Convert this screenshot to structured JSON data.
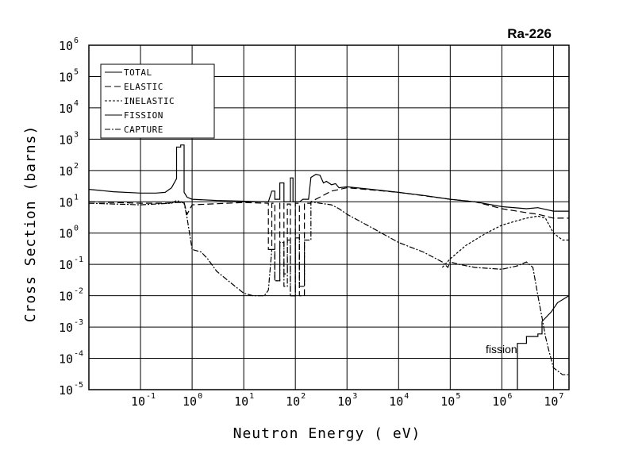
{
  "chart_data": {
    "type": "line",
    "title": "Ra-226",
    "xlabel": "Neutron Energy ( eV)",
    "ylabel": "Cross Section (barns)",
    "xscale": "log",
    "yscale": "log",
    "xlim": [
      0.01,
      20000000
    ],
    "ylim": [
      1e-05,
      1000000
    ],
    "grid": true,
    "legend_position": "top-left",
    "x_ticks": [
      {
        "base": "10",
        "exp": "-1",
        "value": 0.1
      },
      {
        "base": "10",
        "exp": "0",
        "value": 1
      },
      {
        "base": "10",
        "exp": "1",
        "value": 10
      },
      {
        "base": "10",
        "exp": "2",
        "value": 100
      },
      {
        "base": "10",
        "exp": "3",
        "value": 1000
      },
      {
        "base": "10",
        "exp": "4",
        "value": 10000
      },
      {
        "base": "10",
        "exp": "5",
        "value": 100000
      },
      {
        "base": "10",
        "exp": "6",
        "value": 1000000
      },
      {
        "base": "10",
        "exp": "7",
        "value": 10000000
      }
    ],
    "y_ticks": [
      {
        "base": "10",
        "exp": "6",
        "value": 1000000
      },
      {
        "base": "10",
        "exp": "5",
        "value": 100000
      },
      {
        "base": "10",
        "exp": "4",
        "value": 10000
      },
      {
        "base": "10",
        "exp": "3",
        "value": 1000
      },
      {
        "base": "10",
        "exp": "2",
        "value": 100
      },
      {
        "base": "10",
        "exp": "1",
        "value": 10
      },
      {
        "base": "10",
        "exp": "0",
        "value": 1
      },
      {
        "base": "10",
        "exp": "-1",
        "value": 0.1
      },
      {
        "base": "10",
        "exp": "-2",
        "value": 0.01
      },
      {
        "base": "10",
        "exp": "-3",
        "value": 0.001
      },
      {
        "base": "10",
        "exp": "-4",
        "value": 0.0001
      },
      {
        "base": "10",
        "exp": "-5",
        "value": 1e-05
      }
    ],
    "annotations": [
      {
        "text": "fission",
        "x": 300000,
        "y": 0.00012
      }
    ],
    "series": [
      {
        "name": "TOTAL",
        "style": "solid",
        "points": [
          [
            0.01,
            25
          ],
          [
            0.03,
            21
          ],
          [
            0.1,
            19
          ],
          [
            0.2,
            19
          ],
          [
            0.3,
            20
          ],
          [
            0.4,
            28
          ],
          [
            0.5,
            55
          ],
          [
            0.5,
            560
          ],
          [
            0.6,
            560
          ],
          [
            0.6,
            650
          ],
          [
            0.7,
            650
          ],
          [
            0.7,
            20
          ],
          [
            0.8,
            14
          ],
          [
            1,
            12
          ],
          [
            3,
            11
          ],
          [
            30,
            10
          ],
          [
            35,
            22
          ],
          [
            40,
            22
          ],
          [
            40,
            12
          ],
          [
            50,
            12
          ],
          [
            50,
            40
          ],
          [
            60,
            40
          ],
          [
            60,
            10
          ],
          [
            80,
            10
          ],
          [
            80,
            58
          ],
          [
            90,
            58
          ],
          [
            90,
            10
          ],
          [
            120,
            10
          ],
          [
            140,
            12
          ],
          [
            180,
            12
          ],
          [
            200,
            60
          ],
          [
            250,
            75
          ],
          [
            300,
            70
          ],
          [
            350,
            40
          ],
          [
            400,
            45
          ],
          [
            500,
            35
          ],
          [
            600,
            38
          ],
          [
            700,
            28
          ],
          [
            1000,
            30
          ],
          [
            3000,
            25
          ],
          [
            10000,
            20
          ],
          [
            30000,
            16
          ],
          [
            100000,
            12
          ],
          [
            300000,
            10
          ],
          [
            1000000,
            7
          ],
          [
            3000000,
            6
          ],
          [
            5000000,
            6.5
          ],
          [
            10000000,
            5
          ],
          [
            20000000,
            5
          ]
        ]
      },
      {
        "name": "ELASTIC",
        "style": "long-dash",
        "points": [
          [
            0.01,
            10
          ],
          [
            0.1,
            9
          ],
          [
            0.3,
            9
          ],
          [
            0.5,
            9.5
          ],
          [
            0.7,
            9.5
          ],
          [
            0.8,
            4
          ],
          [
            1,
            8
          ],
          [
            10,
            9.5
          ],
          [
            30,
            9
          ],
          [
            30,
            0.3
          ],
          [
            35,
            0.3
          ],
          [
            35,
            9
          ],
          [
            40,
            9
          ],
          [
            40,
            0.03
          ],
          [
            50,
            0.03
          ],
          [
            50,
            9
          ],
          [
            60,
            9
          ],
          [
            60,
            0.05
          ],
          [
            70,
            0.05
          ],
          [
            70,
            8.5
          ],
          [
            80,
            8.5
          ],
          [
            80,
            0.01
          ],
          [
            100,
            0.01
          ],
          [
            100,
            9
          ],
          [
            120,
            9
          ],
          [
            120,
            0.01
          ],
          [
            150,
            0.01
          ],
          [
            150,
            9
          ],
          [
            200,
            9
          ],
          [
            200,
            10
          ],
          [
            500,
            22
          ],
          [
            1000,
            28
          ],
          [
            10000,
            20
          ],
          [
            100000,
            12
          ],
          [
            300000,
            10
          ],
          [
            1000000,
            6
          ],
          [
            3000000,
            4.5
          ],
          [
            5000000,
            4
          ],
          [
            7000000,
            3.5
          ],
          [
            10000000,
            3
          ],
          [
            20000000,
            3
          ]
        ]
      },
      {
        "name": "INELASTIC",
        "style": "short-dash",
        "points": [
          [
            70000,
            0.08
          ],
          [
            100000,
            0.15
          ],
          [
            200000,
            0.4
          ],
          [
            500000,
            1
          ],
          [
            1000000,
            1.8
          ],
          [
            2000000,
            2.5
          ],
          [
            3000000,
            3
          ],
          [
            5000000,
            3.5
          ],
          [
            7000000,
            3
          ],
          [
            10000000,
            1
          ],
          [
            15000000,
            0.6
          ],
          [
            20000000,
            0.6
          ]
        ]
      },
      {
        "name": "FISSION",
        "style": "solid",
        "points": [
          [
            2000000,
            1e-05
          ],
          [
            2000000,
            0.0003
          ],
          [
            3000000,
            0.0003
          ],
          [
            3000000,
            0.0005
          ],
          [
            5000000,
            0.0005
          ],
          [
            5000000,
            0.0006
          ],
          [
            6000000,
            0.0006
          ],
          [
            6000000,
            0.0015
          ],
          [
            9000000,
            0.003
          ],
          [
            12000000,
            0.006
          ],
          [
            16000000,
            0.008
          ],
          [
            20000000,
            0.01
          ]
        ]
      },
      {
        "name": "CAPTURE",
        "style": "dash-dot",
        "points": [
          [
            0.01,
            9
          ],
          [
            0.1,
            8
          ],
          [
            0.4,
            9
          ],
          [
            0.5,
            11
          ],
          [
            0.6,
            10
          ],
          [
            0.7,
            9
          ],
          [
            0.8,
            3
          ],
          [
            1,
            0.3
          ],
          [
            1.5,
            0.25
          ],
          [
            2,
            0.15
          ],
          [
            3,
            0.06
          ],
          [
            5,
            0.03
          ],
          [
            10,
            0.012
          ],
          [
            15,
            0.01
          ],
          [
            25,
            0.01
          ],
          [
            30,
            0.015
          ],
          [
            35,
            0.3
          ],
          [
            40,
            0.3
          ],
          [
            40,
            0.03
          ],
          [
            50,
            0.03
          ],
          [
            50,
            0.5
          ],
          [
            60,
            0.5
          ],
          [
            60,
            0.02
          ],
          [
            70,
            0.02
          ],
          [
            70,
            0.6
          ],
          [
            80,
            0.6
          ],
          [
            80,
            0.01
          ],
          [
            100,
            0.01
          ],
          [
            100,
            0.7
          ],
          [
            120,
            0.7
          ],
          [
            120,
            0.02
          ],
          [
            150,
            0.02
          ],
          [
            150,
            0.6
          ],
          [
            200,
            0.6
          ],
          [
            200,
            10
          ],
          [
            300,
            9
          ],
          [
            500,
            8
          ],
          [
            700,
            6
          ],
          [
            1000,
            4
          ],
          [
            3000,
            1.5
          ],
          [
            10000,
            0.5
          ],
          [
            30000,
            0.25
          ],
          [
            70000,
            0.12
          ],
          [
            90000,
            0.08
          ],
          [
            100000,
            0.12
          ],
          [
            150000,
            0.1
          ],
          [
            300000,
            0.08
          ],
          [
            1000000,
            0.07
          ],
          [
            2000000,
            0.09
          ],
          [
            3000000,
            0.12
          ],
          [
            4000000,
            0.08
          ],
          [
            5000000,
            0.01
          ],
          [
            6000000,
            0.002
          ],
          [
            7000000,
            0.0005
          ],
          [
            8000000,
            0.0002
          ],
          [
            10000000,
            5e-05
          ],
          [
            15000000,
            3e-05
          ],
          [
            20000000,
            3e-05
          ]
        ]
      }
    ]
  }
}
